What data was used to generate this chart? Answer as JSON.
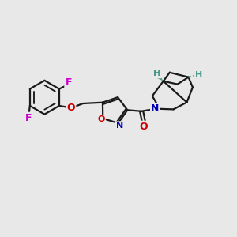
{
  "bg_color": "#e8e8e8",
  "bond_color": "#1a1a1a",
  "bond_width": 1.6,
  "atom_colors": {
    "F": "#cc00cc",
    "O": "#cc0000",
    "N": "#0000bb",
    "H": "#4a9a8a",
    "stereo": "#4a9a8a"
  }
}
